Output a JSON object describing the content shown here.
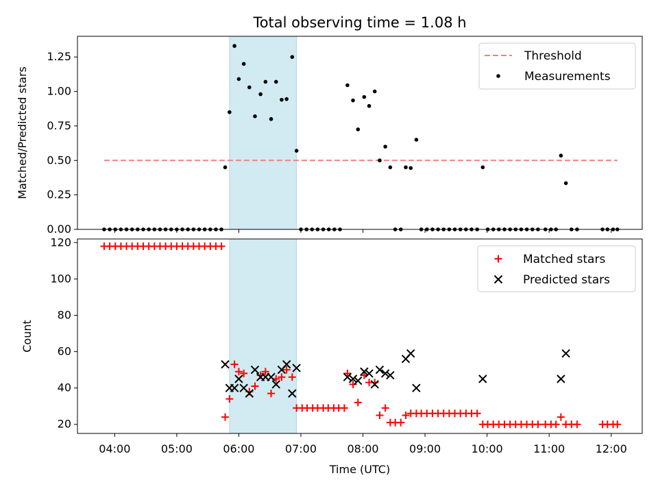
{
  "chart_data": [
    {
      "type": "scatter",
      "title": "Total observing time = 1.08 h",
      "xlabel": "",
      "ylabel": "Matched/Predicted stars",
      "ylim": [
        0,
        1.4
      ],
      "yticks": [
        "0.00",
        "0.25",
        "0.50",
        "0.75",
        "1.00",
        "1.25"
      ],
      "x_unit": "hours UTC",
      "xlim": [
        3.4,
        12.5
      ],
      "highlight_span": [
        5.85,
        6.93
      ],
      "legend_position": "top-right",
      "threshold": {
        "name": "Threshold",
        "y": 0.5,
        "x": [
          3.83,
          12.1
        ],
        "color": "#f08080"
      },
      "measurements": {
        "name": "Measurements",
        "color": "#000000",
        "points": [
          [
            3.83,
            0
          ],
          [
            3.92,
            0
          ],
          [
            4.01,
            0
          ],
          [
            4.1,
            0
          ],
          [
            4.19,
            0
          ],
          [
            4.28,
            0
          ],
          [
            4.37,
            0
          ],
          [
            4.46,
            0
          ],
          [
            4.55,
            0
          ],
          [
            4.64,
            0
          ],
          [
            4.73,
            0
          ],
          [
            4.82,
            0
          ],
          [
            4.91,
            0
          ],
          [
            5.0,
            0
          ],
          [
            5.09,
            0
          ],
          [
            5.18,
            0
          ],
          [
            5.27,
            0
          ],
          [
            5.36,
            0
          ],
          [
            5.45,
            0
          ],
          [
            5.54,
            0
          ],
          [
            5.63,
            0
          ],
          [
            5.72,
            0
          ],
          [
            5.78,
            0.45
          ],
          [
            5.85,
            0.85
          ],
          [
            5.93,
            1.33
          ],
          [
            6.0,
            1.09
          ],
          [
            6.08,
            1.2
          ],
          [
            6.17,
            1.03
          ],
          [
            6.26,
            0.82
          ],
          [
            6.35,
            0.98
          ],
          [
            6.43,
            1.07
          ],
          [
            6.52,
            0.8
          ],
          [
            6.6,
            1.07
          ],
          [
            6.69,
            0.94
          ],
          [
            6.77,
            0.945
          ],
          [
            6.86,
            1.25
          ],
          [
            6.93,
            0.57
          ],
          [
            7.0,
            0
          ],
          [
            7.09,
            0
          ],
          [
            7.18,
            0
          ],
          [
            7.27,
            0
          ],
          [
            7.36,
            0
          ],
          [
            7.45,
            0
          ],
          [
            7.54,
            0
          ],
          [
            7.63,
            0
          ],
          [
            7.75,
            1.045
          ],
          [
            7.84,
            0.935
          ],
          [
            7.92,
            0.725
          ],
          [
            8.02,
            0.96
          ],
          [
            8.1,
            0.895
          ],
          [
            8.19,
            1.0
          ],
          [
            8.27,
            0.5
          ],
          [
            8.36,
            0.6
          ],
          [
            8.44,
            0.45
          ],
          [
            8.52,
            0
          ],
          [
            8.61,
            0
          ],
          [
            8.69,
            0.45
          ],
          [
            8.77,
            0.445
          ],
          [
            8.86,
            0.65
          ],
          [
            8.94,
            0
          ],
          [
            9.03,
            0
          ],
          [
            9.12,
            0
          ],
          [
            9.21,
            0
          ],
          [
            9.3,
            0
          ],
          [
            9.39,
            0
          ],
          [
            9.48,
            0
          ],
          [
            9.57,
            0
          ],
          [
            9.66,
            0
          ],
          [
            9.75,
            0
          ],
          [
            9.84,
            0
          ],
          [
            9.93,
            0.45
          ],
          [
            10.01,
            0
          ],
          [
            10.1,
            0
          ],
          [
            10.19,
            0
          ],
          [
            10.28,
            0
          ],
          [
            10.37,
            0
          ],
          [
            10.46,
            0
          ],
          [
            10.55,
            0
          ],
          [
            10.64,
            0
          ],
          [
            10.73,
            0
          ],
          [
            10.82,
            0
          ],
          [
            10.94,
            0
          ],
          [
            11.03,
            0
          ],
          [
            11.11,
            0
          ],
          [
            11.19,
            0.535
          ],
          [
            11.27,
            0.335
          ],
          [
            11.36,
            0
          ],
          [
            11.45,
            0
          ],
          [
            11.86,
            0
          ],
          [
            11.94,
            0
          ],
          [
            12.03,
            0
          ],
          [
            12.1,
            0
          ]
        ]
      }
    },
    {
      "type": "scatter",
      "title": "",
      "xlabel": "Time (UTC)",
      "ylabel": "Count",
      "ylim": [
        15,
        122
      ],
      "yticks": [
        "20",
        "40",
        "60",
        "80",
        "100",
        "120"
      ],
      "x_unit": "hours UTC",
      "xlim": [
        3.4,
        12.5
      ],
      "xticks": [
        {
          "value": 4,
          "label": "04:00"
        },
        {
          "value": 5,
          "label": "05:00"
        },
        {
          "value": 6,
          "label": "06:00"
        },
        {
          "value": 7,
          "label": "07:00"
        },
        {
          "value": 8,
          "label": "08:00"
        },
        {
          "value": 9,
          "label": "09:00"
        },
        {
          "value": 10,
          "label": "10:00"
        },
        {
          "value": 11,
          "label": "11:00"
        },
        {
          "value": 12,
          "label": "12:00"
        }
      ],
      "highlight_span": [
        5.85,
        6.93
      ],
      "legend_position": "top-right",
      "series": [
        {
          "name": "Matched stars",
          "marker": "plus",
          "color": "#ff0000",
          "points": [
            [
              3.83,
              118
            ],
            [
              3.92,
              118
            ],
            [
              4.01,
              118
            ],
            [
              4.1,
              118
            ],
            [
              4.19,
              118
            ],
            [
              4.28,
              118
            ],
            [
              4.37,
              118
            ],
            [
              4.46,
              118
            ],
            [
              4.55,
              118
            ],
            [
              4.64,
              118
            ],
            [
              4.73,
              118
            ],
            [
              4.82,
              118
            ],
            [
              4.91,
              118
            ],
            [
              5.0,
              118
            ],
            [
              5.09,
              118
            ],
            [
              5.18,
              118
            ],
            [
              5.27,
              118
            ],
            [
              5.36,
              118
            ],
            [
              5.45,
              118
            ],
            [
              5.54,
              118
            ],
            [
              5.63,
              118
            ],
            [
              5.72,
              118
            ],
            [
              5.78,
              24
            ],
            [
              5.85,
              34
            ],
            [
              5.93,
              53
            ],
            [
              6.0,
              49
            ],
            [
              6.08,
              48
            ],
            [
              6.17,
              38
            ],
            [
              6.26,
              41
            ],
            [
              6.35,
              47
            ],
            [
              6.43,
              49
            ],
            [
              6.52,
              37
            ],
            [
              6.6,
              45
            ],
            [
              6.69,
              46
            ],
            [
              6.77,
              50
            ],
            [
              6.86,
              46
            ],
            [
              6.93,
              29
            ],
            [
              7.02,
              29
            ],
            [
              7.1,
              29
            ],
            [
              7.19,
              29
            ],
            [
              7.27,
              29
            ],
            [
              7.36,
              29
            ],
            [
              7.44,
              29
            ],
            [
              7.53,
              29
            ],
            [
              7.61,
              29
            ],
            [
              7.7,
              29
            ],
            [
              7.75,
              48
            ],
            [
              7.84,
              42
            ],
            [
              7.92,
              32
            ],
            [
              8.02,
              47
            ],
            [
              8.1,
              43
            ],
            [
              8.19,
              43
            ],
            [
              8.27,
              25
            ],
            [
              8.36,
              29
            ],
            [
              8.44,
              21
            ],
            [
              8.52,
              21
            ],
            [
              8.61,
              21
            ],
            [
              8.69,
              25
            ],
            [
              8.77,
              26
            ],
            [
              8.86,
              26
            ],
            [
              8.94,
              26
            ],
            [
              9.03,
              26
            ],
            [
              9.12,
              26
            ],
            [
              9.21,
              26
            ],
            [
              9.3,
              26
            ],
            [
              9.39,
              26
            ],
            [
              9.48,
              26
            ],
            [
              9.57,
              26
            ],
            [
              9.66,
              26
            ],
            [
              9.75,
              26
            ],
            [
              9.84,
              26
            ],
            [
              9.93,
              20
            ],
            [
              10.01,
              20
            ],
            [
              10.1,
              20
            ],
            [
              10.19,
              20
            ],
            [
              10.28,
              20
            ],
            [
              10.37,
              20
            ],
            [
              10.46,
              20
            ],
            [
              10.55,
              20
            ],
            [
              10.64,
              20
            ],
            [
              10.73,
              20
            ],
            [
              10.82,
              20
            ],
            [
              10.94,
              20
            ],
            [
              11.03,
              20
            ],
            [
              11.11,
              20
            ],
            [
              11.19,
              24
            ],
            [
              11.27,
              20
            ],
            [
              11.36,
              20
            ],
            [
              11.45,
              20
            ],
            [
              11.86,
              20
            ],
            [
              11.94,
              20
            ],
            [
              12.03,
              20
            ],
            [
              12.1,
              20
            ]
          ]
        },
        {
          "name": "Predicted stars",
          "marker": "x",
          "color": "#000000",
          "points": [
            [
              5.78,
              53
            ],
            [
              5.85,
              40
            ],
            [
              5.93,
              40
            ],
            [
              6.0,
              45
            ],
            [
              6.08,
              40
            ],
            [
              6.17,
              37
            ],
            [
              6.26,
              50
            ],
            [
              6.35,
              46
            ],
            [
              6.43,
              46
            ],
            [
              6.52,
              46
            ],
            [
              6.6,
              42
            ],
            [
              6.69,
              50
            ],
            [
              6.77,
              53
            ],
            [
              6.86,
              37
            ],
            [
              6.93,
              51
            ],
            [
              7.75,
              46
            ],
            [
              7.84,
              45
            ],
            [
              7.92,
              44
            ],
            [
              8.02,
              49
            ],
            [
              8.1,
              48
            ],
            [
              8.19,
              42
            ],
            [
              8.27,
              50
            ],
            [
              8.36,
              48
            ],
            [
              8.44,
              47
            ],
            [
              8.69,
              56
            ],
            [
              8.77,
              59
            ],
            [
              8.86,
              40
            ],
            [
              9.93,
              45
            ],
            [
              11.19,
              45
            ],
            [
              11.27,
              59
            ]
          ]
        }
      ]
    }
  ]
}
